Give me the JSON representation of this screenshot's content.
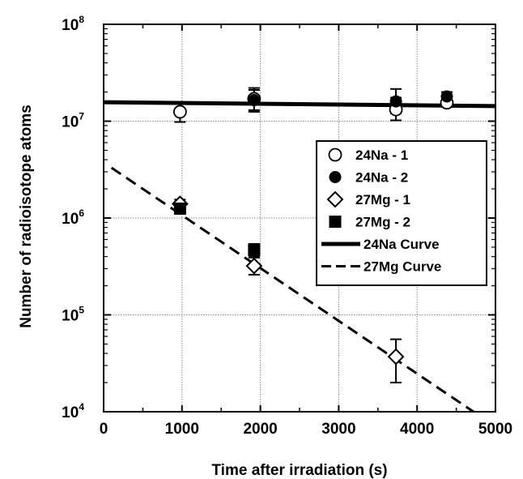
{
  "chart_data": {
    "type": "scatter",
    "title": "",
    "xlabel": "Time after irradiation (s)",
    "ylabel": "Number of radioisotope atoms",
    "xlim": [
      0,
      5000
    ],
    "ylim": [
      10000,
      100000000
    ],
    "yscale": "log",
    "grid": true,
    "legend_position": "right",
    "x_ticks": [
      "0",
      "1000",
      "2000",
      "3000",
      "4000",
      "5000"
    ],
    "y_ticks": [
      {
        "base": "10",
        "exp": "4"
      },
      {
        "base": "10",
        "exp": "5"
      },
      {
        "base": "10",
        "exp": "6"
      },
      {
        "base": "10",
        "exp": "7"
      },
      {
        "base": "10",
        "exp": "8"
      }
    ],
    "series": [
      {
        "name": "24Na - 1",
        "marker": "circle-open",
        "points": [
          {
            "x": 975,
            "y": 12500000,
            "err_lo": 9800000,
            "err_hi": 15500000
          },
          {
            "x": 1920,
            "y": 17000000,
            "err_lo": 12500000,
            "err_hi": 22000000
          },
          {
            "x": 3730,
            "y": 13200000,
            "err_lo": 10200000,
            "err_hi": 17500000
          },
          {
            "x": 4380,
            "y": 15500000,
            "err_lo": 14000000,
            "err_hi": 17000000
          }
        ]
      },
      {
        "name": "24Na - 2",
        "marker": "circle-filled",
        "points": [
          {
            "x": 1920,
            "y": 16500000,
            "err_lo": 13000000,
            "err_hi": 21000000
          },
          {
            "x": 3730,
            "y": 16000000,
            "err_lo": 12000000,
            "err_hi": 21500000
          },
          {
            "x": 4380,
            "y": 18000000,
            "err_lo": 16000000,
            "err_hi": 20000000
          }
        ]
      },
      {
        "name": "27Mg - 1",
        "marker": "diamond-open",
        "points": [
          {
            "x": 975,
            "y": 1400000,
            "err_lo": 1250000,
            "err_hi": 1550000
          },
          {
            "x": 1920,
            "y": 320000,
            "err_lo": 260000,
            "err_hi": 390000
          },
          {
            "x": 3730,
            "y": 37000,
            "err_lo": 20000,
            "err_hi": 56000
          }
        ]
      },
      {
        "name": "27Mg - 2",
        "marker": "square-filled",
        "points": [
          {
            "x": 975,
            "y": 1250000,
            "err_lo": 1150000,
            "err_hi": 1350000
          },
          {
            "x": 1920,
            "y": 470000,
            "err_lo": 400000,
            "err_hi": 540000
          }
        ]
      },
      {
        "name": "24Na Curve",
        "style": "solid-line",
        "line": [
          {
            "x": 0,
            "y": 15700000
          },
          {
            "x": 5000,
            "y": 14300000
          }
        ]
      },
      {
        "name": "27Mg Curve",
        "style": "dashed-line",
        "line": [
          {
            "x": 100,
            "y": 3300000
          },
          {
            "x": 4720,
            "y": 10000
          }
        ]
      }
    ]
  }
}
